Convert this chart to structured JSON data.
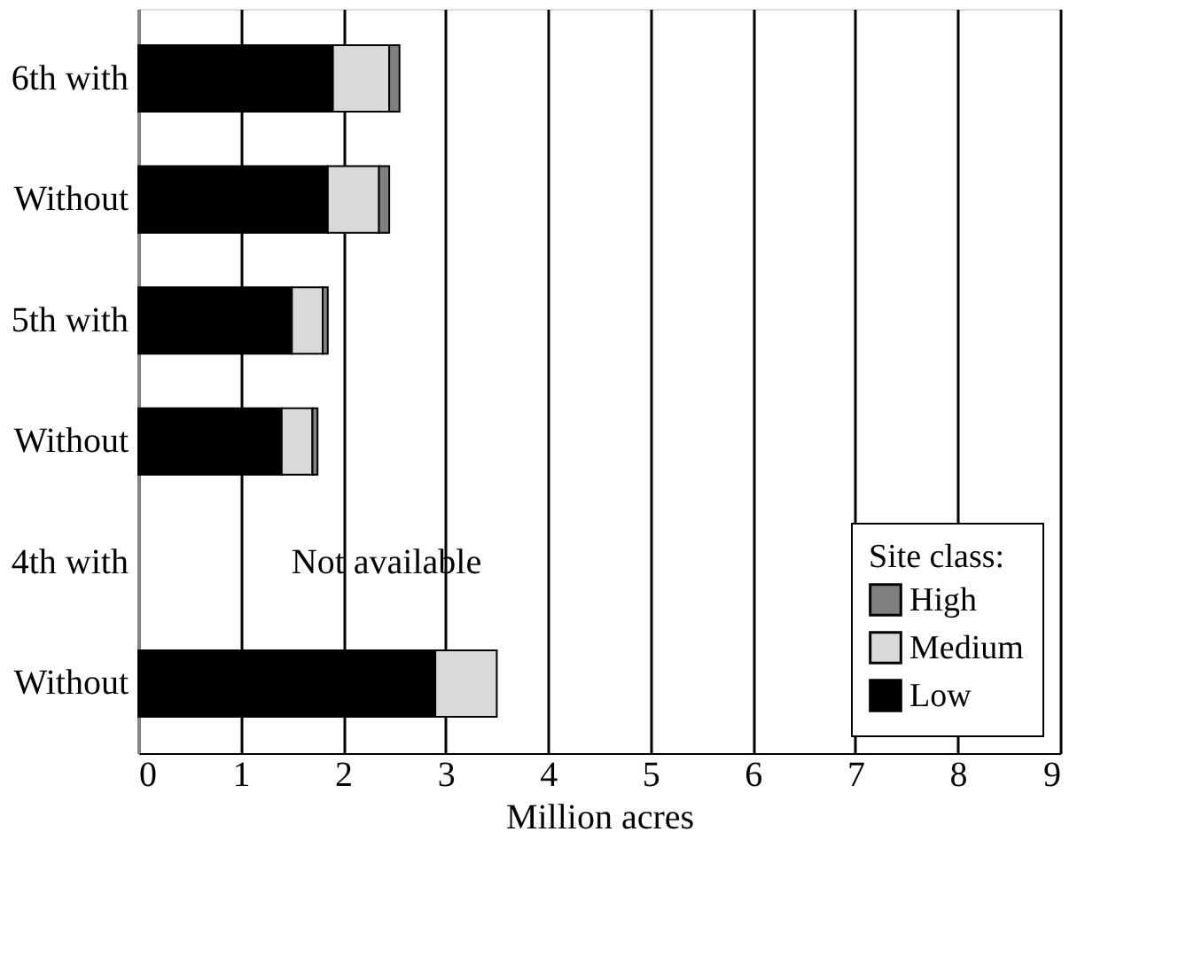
{
  "chart_data": {
    "type": "bar",
    "orientation": "horizontal",
    "stacked": true,
    "categories": [
      "6th with",
      "Without",
      "5th with",
      "Without",
      "4th with",
      "Without"
    ],
    "series": [
      {
        "name": "Low",
        "color": "#000000",
        "values": [
          1.9,
          1.85,
          1.5,
          1.4,
          null,
          2.9
        ]
      },
      {
        "name": "Medium",
        "color": "#d9d9d9",
        "values": [
          0.55,
          0.5,
          0.3,
          0.3,
          null,
          0.6
        ]
      },
      {
        "name": "High",
        "color": "#808080",
        "values": [
          0.1,
          0.1,
          0.05,
          0.05,
          null,
          null
        ]
      }
    ],
    "xlabel": "Million acres",
    "xlim": [
      0,
      9
    ],
    "xticks": [
      0,
      1,
      2,
      3,
      4,
      5,
      6,
      7,
      8,
      9
    ],
    "grid": "x",
    "legend": "bottom right",
    "legend_title": "Site class:",
    "annotations": [
      "Not available"
    ]
  }
}
